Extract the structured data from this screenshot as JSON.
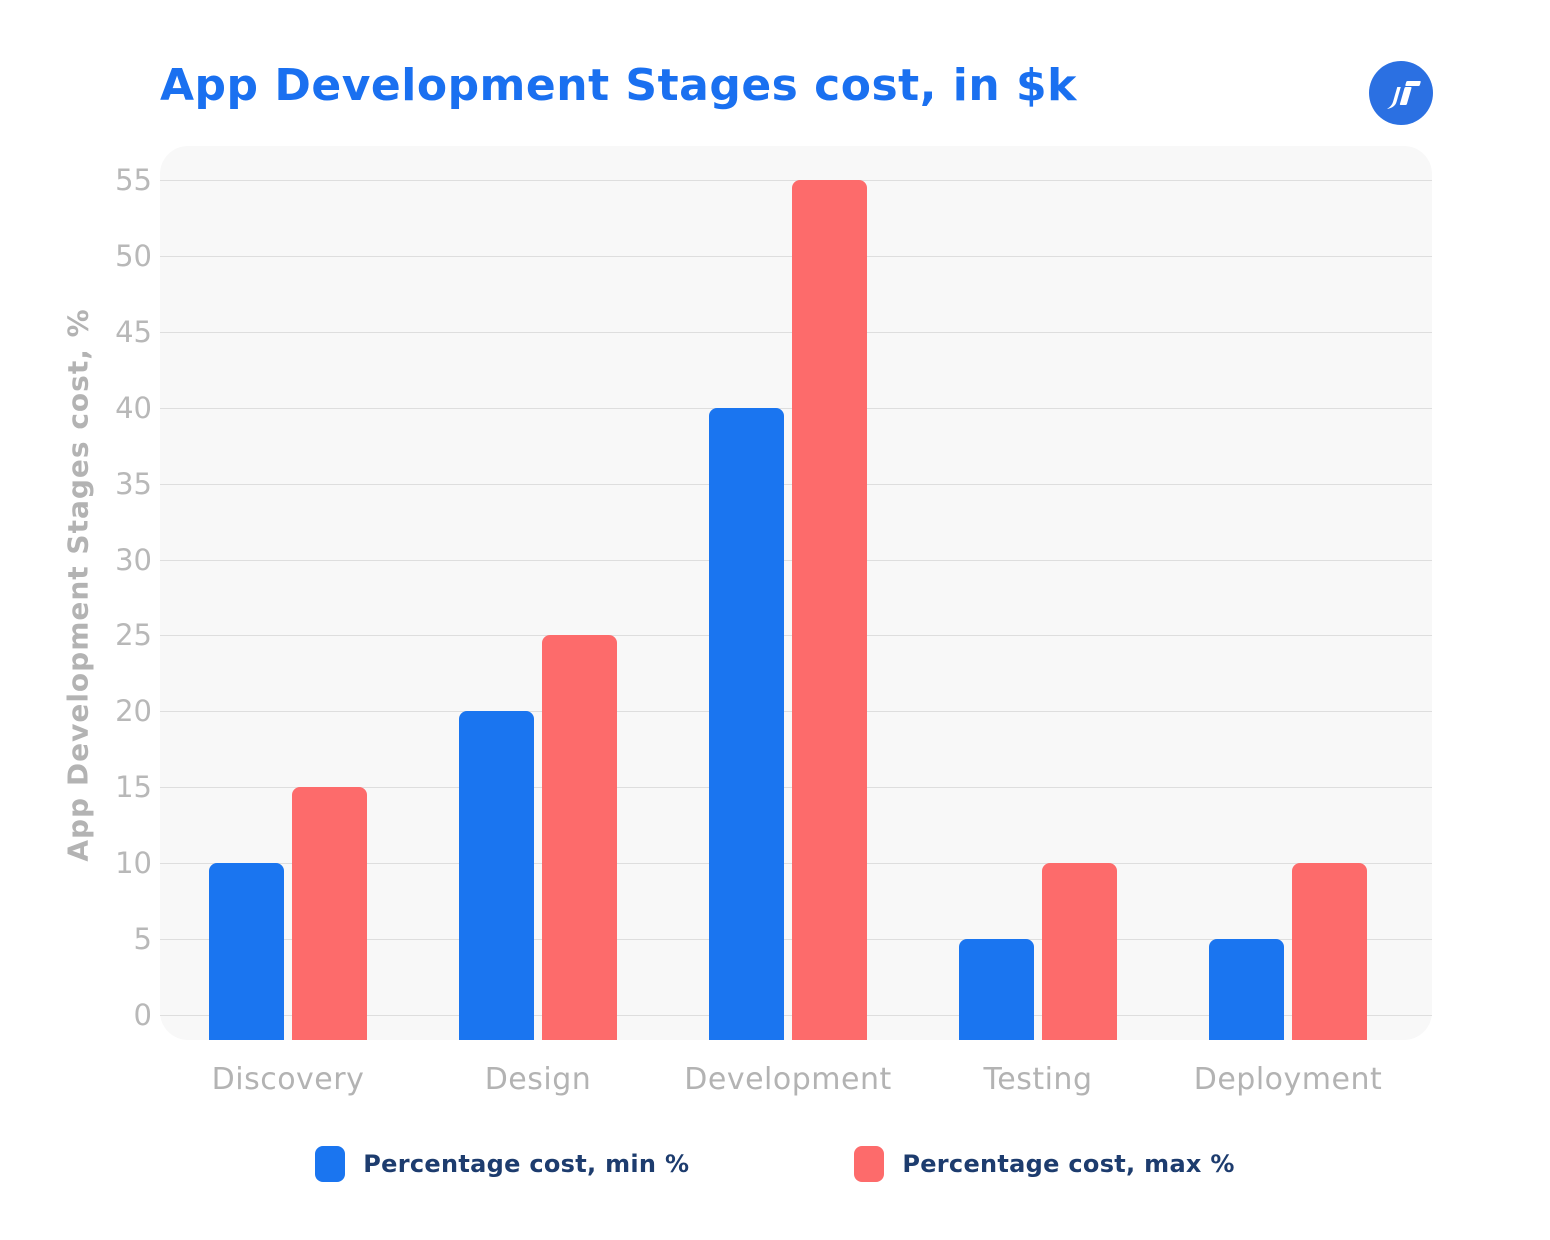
{
  "header": {
    "title": "App Development Stages cost, in $k",
    "logo_glyph": "IT"
  },
  "colors": {
    "title": "#1a70f0",
    "bar_min": "#1a75f0",
    "bar_max": "#fd6b6b",
    "legend_text": "#1d3c6e",
    "axis_text": "#b5b5b5",
    "gridline": "#dedede",
    "panel_background": "#f8f8f8",
    "logo_circle": "#2b70e2"
  },
  "chart_data": {
    "type": "bar",
    "title": "App Development Stages cost, in $k",
    "ylabel": "App Development Stages cost, %",
    "categories": [
      "Discovery",
      "Design",
      "Development",
      "Testing",
      "Deployment"
    ],
    "series": [
      {
        "name": "Percentage cost, min %",
        "color": "#1a75f0",
        "values": [
          10,
          20,
          40,
          5,
          5
        ]
      },
      {
        "name": "Percentage cost, max %",
        "color": "#fd6b6b",
        "values": [
          15,
          25,
          55,
          10,
          10
        ]
      }
    ],
    "ylim": [
      0,
      55
    ],
    "yticks": [
      0,
      5,
      10,
      15,
      20,
      25,
      30,
      35,
      40,
      45,
      50,
      55
    ],
    "grid": true,
    "legend_position": "bottom"
  }
}
